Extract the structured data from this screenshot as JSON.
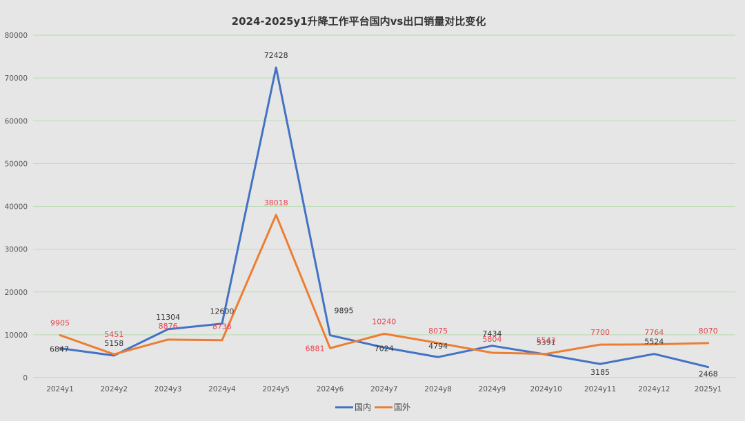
{
  "chart_data": {
    "type": "line",
    "title": "2024-2025y1升降工作平台国内vs出口销量对比变化",
    "categories": [
      "2024y1",
      "2024y2",
      "2024y3",
      "2024y4",
      "2024y5",
      "2024y6",
      "2024y7",
      "2024y8",
      "2024y9",
      "2024y10",
      "2024y11",
      "2024y12",
      "2025y1"
    ],
    "series": [
      {
        "name": "国内",
        "color": "#4472c4",
        "label_color": "#333333",
        "values": [
          6847,
          5158,
          11304,
          12600,
          72428,
          9895,
          7024,
          4794,
          7434,
          5391,
          3185,
          5524,
          2468
        ]
      },
      {
        "name": "国外",
        "color": "#ed7d31",
        "label_color": "#e8424f",
        "values": [
          9905,
          5451,
          8876,
          8736,
          38018,
          6881,
          10240,
          8075,
          5804,
          5543,
          7700,
          7764,
          8070
        ]
      }
    ],
    "ylim": [
      0,
      80000
    ],
    "yticks": [
      0,
      10000,
      20000,
      30000,
      40000,
      50000,
      60000,
      70000,
      80000
    ],
    "grid": true,
    "legend_position": "bottom-center",
    "xlabel": "",
    "ylabel": ""
  }
}
